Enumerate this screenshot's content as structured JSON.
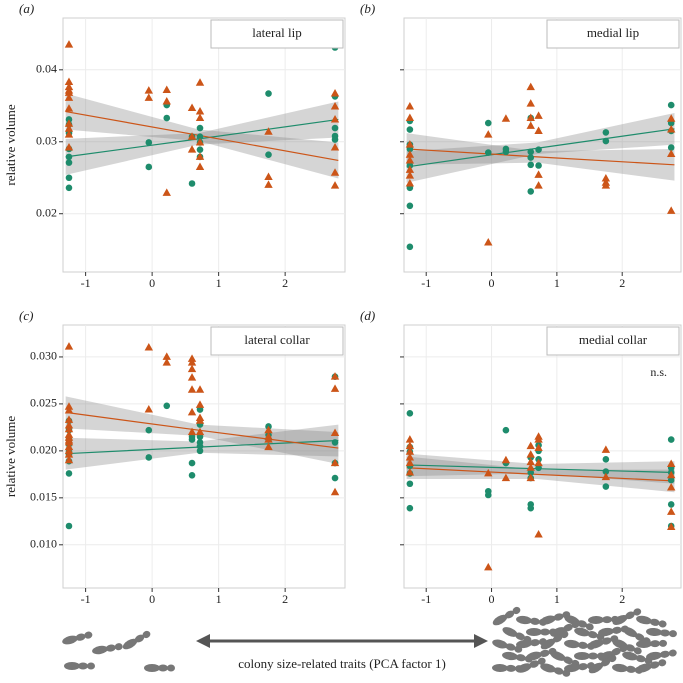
{
  "chart_data": [
    {
      "type": "scatter",
      "panel_label": "(a)",
      "title": "lateral lip",
      "ylabel": "relative volume",
      "xlim": [
        -1.34,
        2.9
      ],
      "xticks": [
        -1,
        0,
        1,
        2
      ],
      "ylim": [
        0.0119,
        0.0472
      ],
      "yticks": [
        0.02,
        0.03,
        0.04
      ],
      "show_ytick_labels": true,
      "grid": true,
      "series": [
        {
          "color": "#1e8c6c",
          "marker": "circle",
          "x": [
            -1.25,
            -1.25,
            -1.25,
            -1.25,
            -1.25,
            -1.25,
            -1.25,
            -1.25,
            -0.05,
            -0.05,
            0.22,
            0.22,
            0.6,
            0.6,
            0.72,
            0.72,
            0.72,
            0.72,
            0.72,
            1.75,
            1.75,
            2.75,
            2.75,
            2.75,
            2.75,
            2.75
          ],
          "values": [
            0.0331,
            0.0324,
            0.0312,
            0.029,
            0.0279,
            0.0271,
            0.025,
            0.0236,
            0.0299,
            0.0265,
            0.0351,
            0.0333,
            0.0307,
            0.0242,
            0.0319,
            0.0307,
            0.0299,
            0.0289,
            0.0279,
            0.0367,
            0.0282,
            0.0431,
            0.0363,
            0.0319,
            0.0308,
            0.0303
          ],
          "fit": {
            "x": [
              -1.3,
              0.7,
              2.8
            ],
            "values": [
              0.0279,
              0.0304,
              0.0331
            ],
            "lower": [
              0.0254,
              0.0296,
              0.0306
            ],
            "upper": [
              0.0304,
              0.0312,
              0.0356
            ]
          }
        },
        {
          "color": "#cc5518",
          "marker": "triangle",
          "x": [
            -1.25,
            -1.25,
            -1.25,
            -1.25,
            -1.25,
            -1.25,
            -1.25,
            -1.25,
            -1.25,
            -1.25,
            -1.25,
            -0.05,
            -0.05,
            0.22,
            0.22,
            0.22,
            0.6,
            0.6,
            0.6,
            0.72,
            0.72,
            0.72,
            0.72,
            0.72,
            0.72,
            1.75,
            1.75,
            1.75,
            2.75,
            2.75,
            2.75,
            2.75,
            2.75,
            2.75
          ],
          "values": [
            0.0435,
            0.0383,
            0.0376,
            0.0371,
            0.0368,
            0.0361,
            0.0346,
            0.0325,
            0.0318,
            0.031,
            0.0292,
            0.0371,
            0.0361,
            0.0372,
            0.0356,
            0.0229,
            0.0347,
            0.0307,
            0.0289,
            0.0382,
            0.0342,
            0.0333,
            0.0299,
            0.0279,
            0.0265,
            0.0314,
            0.0251,
            0.024,
            0.0367,
            0.0349,
            0.0331,
            0.0292,
            0.0257,
            0.0239
          ],
          "fit": {
            "x": [
              -1.3,
              0.7,
              2.8
            ],
            "values": [
              0.0342,
              0.0309,
              0.0274
            ],
            "lower": [
              0.0317,
              0.0301,
              0.0249
            ],
            "upper": [
              0.0367,
              0.0317,
              0.0299
            ]
          }
        }
      ]
    },
    {
      "type": "scatter",
      "panel_label": "(b)",
      "title": "medial lip",
      "xlim": [
        -1.34,
        2.9
      ],
      "xticks": [
        -1,
        0,
        1,
        2
      ],
      "ylim": [
        0.0119,
        0.0472
      ],
      "yticks": [
        0.02,
        0.03,
        0.04
      ],
      "show_ytick_labels": false,
      "grid": true,
      "series": [
        {
          "color": "#1e8c6c",
          "marker": "circle",
          "x": [
            -1.25,
            -1.25,
            -1.25,
            -1.25,
            -1.25,
            -1.25,
            -1.25,
            -1.25,
            -0.05,
            -0.05,
            0.22,
            0.22,
            0.6,
            0.6,
            0.6,
            0.6,
            0.6,
            0.72,
            0.72,
            1.75,
            1.75,
            2.75,
            2.75,
            2.75,
            2.75
          ],
          "values": [
            0.0329,
            0.0317,
            0.0296,
            0.029,
            0.0267,
            0.0236,
            0.0211,
            0.0154,
            0.0326,
            0.0285,
            0.029,
            0.0286,
            0.0333,
            0.0286,
            0.0278,
            0.0268,
            0.0231,
            0.0289,
            0.0267,
            0.0313,
            0.0301,
            0.0351,
            0.0326,
            0.0315,
            0.0292
          ],
          "fit": {
            "x": [
              -1.3,
              0.7,
              2.8
            ],
            "values": [
              0.0265,
              0.0291,
              0.0318
            ],
            "lower": [
              0.0243,
              0.0283,
              0.0296
            ],
            "upper": [
              0.0287,
              0.0299,
              0.034
            ]
          }
        },
        {
          "color": "#cc5518",
          "marker": "triangle",
          "x": [
            -1.25,
            -1.25,
            -1.25,
            -1.25,
            -1.25,
            -1.25,
            -1.25,
            -1.25,
            -0.05,
            -0.05,
            0.22,
            0.6,
            0.6,
            0.6,
            0.6,
            0.72,
            0.72,
            0.72,
            0.72,
            1.75,
            1.75,
            1.75,
            2.75,
            2.75,
            2.75,
            2.75
          ],
          "values": [
            0.0349,
            0.0333,
            0.0296,
            0.0282,
            0.0274,
            0.0261,
            0.0253,
            0.0242,
            0.031,
            0.016,
            0.0332,
            0.0376,
            0.0353,
            0.0333,
            0.0322,
            0.0336,
            0.0315,
            0.0254,
            0.0239,
            0.0249,
            0.0243,
            0.0239,
            0.0332,
            0.0317,
            0.0283,
            0.0204
          ],
          "fit": {
            "x": [
              -1.3,
              0.7,
              2.8
            ],
            "values": [
              0.029,
              0.0279,
              0.0268
            ],
            "lower": [
              0.0268,
              0.0271,
              0.0246
            ],
            "upper": [
              0.0312,
              0.0287,
              0.029
            ]
          }
        }
      ]
    },
    {
      "type": "scatter",
      "panel_label": "(c)",
      "title": "lateral collar",
      "ylabel": "relative volume",
      "xlim": [
        -1.34,
        2.9
      ],
      "xticks": [
        -1,
        0,
        1,
        2
      ],
      "ylim": [
        0.0054,
        0.0334
      ],
      "yticks": [
        {
          "value": 0.01,
          "label": "0.010"
        },
        {
          "value": 0.015,
          "label": "0.015"
        },
        {
          "value": 0.02,
          "label": "0.020"
        },
        {
          "value": 0.025,
          "label": "0.025"
        },
        {
          "value": 0.03,
          "label": "0.030"
        }
      ],
      "show_ytick_labels": true,
      "grid": true,
      "series": [
        {
          "color": "#1e8c6c",
          "marker": "circle",
          "x": [
            -1.25,
            -1.25,
            -1.25,
            -1.25,
            -1.25,
            -1.25,
            -1.25,
            -1.25,
            -1.25,
            -0.05,
            -0.05,
            0.22,
            0.6,
            0.6,
            0.6,
            0.6,
            0.72,
            0.72,
            0.72,
            0.72,
            0.72,
            0.72,
            1.75,
            1.75,
            1.75,
            2.75,
            2.75,
            2.75,
            2.75
          ],
          "values": [
            0.0232,
            0.0222,
            0.0212,
            0.0207,
            0.0199,
            0.0196,
            0.0189,
            0.0176,
            0.012,
            0.0222,
            0.0193,
            0.0248,
            0.0215,
            0.0212,
            0.0187,
            0.0174,
            0.0244,
            0.0228,
            0.0215,
            0.0209,
            0.0205,
            0.02,
            0.0226,
            0.0217,
            0.0212,
            0.0279,
            0.0209,
            0.0187,
            0.0171
          ],
          "fit": {
            "x": [
              -1.3,
              0.7,
              2.8
            ],
            "values": [
              0.0197,
              0.0204,
              0.0211
            ],
            "lower": [
              0.018,
              0.0198,
              0.0194
            ],
            "upper": [
              0.0214,
              0.021,
              0.0228
            ]
          }
        },
        {
          "color": "#cc5518",
          "marker": "triangle",
          "x": [
            -1.25,
            -1.25,
            -1.25,
            -1.25,
            -1.25,
            -1.25,
            -1.25,
            -1.25,
            -1.25,
            -1.25,
            -1.25,
            -1.25,
            -1.25,
            -1.25,
            -0.05,
            -0.05,
            0.22,
            0.22,
            0.6,
            0.6,
            0.6,
            0.6,
            0.6,
            0.6,
            0.6,
            0.72,
            0.72,
            0.72,
            0.72,
            0.72,
            1.75,
            1.75,
            1.75,
            1.75,
            2.75,
            2.75,
            2.75,
            2.75,
            2.75
          ],
          "values": [
            0.0311,
            0.0247,
            0.0243,
            0.0233,
            0.0227,
            0.0223,
            0.0217,
            0.0214,
            0.0211,
            0.0209,
            0.0204,
            0.02,
            0.0196,
            0.019,
            0.031,
            0.0244,
            0.03,
            0.0294,
            0.0298,
            0.0294,
            0.0287,
            0.0278,
            0.0265,
            0.0241,
            0.022,
            0.0265,
            0.0249,
            0.0235,
            0.0232,
            0.022,
            0.0222,
            0.0215,
            0.0212,
            0.0204,
            0.0279,
            0.0266,
            0.0219,
            0.0187,
            0.0156
          ],
          "fit": {
            "x": [
              -1.3,
              0.7,
              2.8
            ],
            "values": [
              0.0241,
              0.0222,
              0.0203
            ],
            "lower": [
              0.0224,
              0.0216,
              0.0186
            ],
            "upper": [
              0.0258,
              0.0228,
              0.022
            ]
          }
        }
      ]
    },
    {
      "type": "scatter",
      "panel_label": "(d)",
      "title": "medial collar",
      "annotation": "n.s.",
      "xlim": [
        -1.34,
        2.9
      ],
      "xticks": [
        -1,
        0,
        1,
        2
      ],
      "ylim": [
        0.0054,
        0.0334
      ],
      "yticks": [
        0.01,
        0.015,
        0.02,
        0.025,
        0.03
      ],
      "show_ytick_labels": false,
      "grid": true,
      "series": [
        {
          "color": "#1e8c6c",
          "marker": "circle",
          "x": [
            -1.25,
            -1.25,
            -1.25,
            -1.25,
            -1.25,
            -1.25,
            -1.25,
            -0.05,
            -0.05,
            0.22,
            0.22,
            0.6,
            0.6,
            0.6,
            0.6,
            0.6,
            0.72,
            0.72,
            0.72,
            0.72,
            1.75,
            1.75,
            1.75,
            2.75,
            2.75,
            2.75,
            2.75,
            2.75,
            2.75
          ],
          "values": [
            0.024,
            0.0204,
            0.0199,
            0.0184,
            0.0176,
            0.0165,
            0.0139,
            0.0157,
            0.0153,
            0.0222,
            0.0187,
            0.0193,
            0.0177,
            0.0171,
            0.0143,
            0.0139,
            0.0206,
            0.02,
            0.0191,
            0.0182,
            0.0191,
            0.0178,
            0.0162,
            0.0212,
            0.0182,
            0.0177,
            0.0169,
            0.0143,
            0.012
          ],
          "fit": {
            "x": [
              -1.3,
              0.7,
              2.8
            ],
            "values": [
              0.0185,
              0.0181,
              0.0177
            ],
            "lower": [
              0.0173,
              0.0176,
              0.0165
            ],
            "upper": [
              0.0197,
              0.0186,
              0.0189
            ]
          }
        },
        {
          "color": "#cc5518",
          "marker": "triangle",
          "x": [
            -1.25,
            -1.25,
            -1.25,
            -1.25,
            -1.25,
            -1.25,
            -0.05,
            -0.05,
            0.22,
            0.22,
            0.6,
            0.6,
            0.6,
            0.6,
            0.6,
            0.72,
            0.72,
            0.72,
            0.72,
            0.72,
            1.75,
            1.75,
            2.75,
            2.75,
            2.75,
            2.75,
            2.75
          ],
          "values": [
            0.0212,
            0.0205,
            0.0199,
            0.0193,
            0.0187,
            0.0177,
            0.0176,
            0.0076,
            0.019,
            0.0171,
            0.0205,
            0.0196,
            0.0188,
            0.0182,
            0.0171,
            0.0215,
            0.0212,
            0.0203,
            0.0187,
            0.0111,
            0.0201,
            0.0172,
            0.0186,
            0.0174,
            0.0161,
            0.0135,
            0.0119
          ],
          "fit": {
            "x": [
              -1.3,
              0.7,
              2.8
            ],
            "values": [
              0.0182,
              0.0175,
              0.0168
            ],
            "lower": [
              0.017,
              0.017,
              0.0156
            ],
            "upper": [
              0.0194,
              0.018,
              0.018
            ]
          }
        }
      ]
    }
  ],
  "x_axis_caption": "colony size-related traits (PCA factor 1)"
}
